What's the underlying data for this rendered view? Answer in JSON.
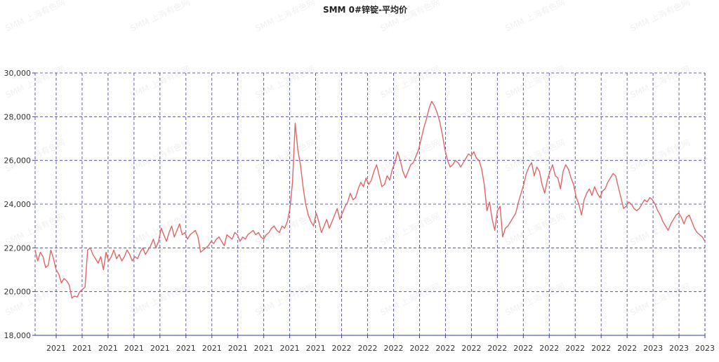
{
  "chart_data": {
    "type": "line",
    "title": "SMM 0#锌锭-平均价",
    "watermark": "SMM 上海有色网",
    "xlabel": "",
    "ylabel": "",
    "ylim": [
      18000,
      30000
    ],
    "y_ticks": [
      "30,000",
      "28,000",
      "26,000",
      "24,000",
      "22,000",
      "20,000",
      "18,000"
    ],
    "x_ticks": [
      "2021",
      "2021",
      "2021",
      "2021",
      "2021",
      "2021",
      "2021",
      "2021",
      "2021",
      "2021",
      "2021",
      "2022",
      "2022",
      "2022",
      "2022",
      "2022",
      "2022",
      "2022",
      "2022",
      "2022",
      "2022",
      "2022",
      "2022",
      "2023",
      "2023",
      "2023"
    ],
    "grid": true,
    "line_color": "#e06666",
    "grid_color": "#3a3a9a",
    "series": [
      {
        "values": [
          21900,
          21400,
          21800,
          21600,
          21100,
          21200,
          21900,
          21500,
          21000,
          20800,
          20400,
          20600,
          20500,
          20300,
          19700,
          19800,
          19750,
          20000,
          20100,
          20200,
          21900,
          22000,
          21700,
          21500,
          21300,
          21600,
          21000,
          21800,
          21400,
          21600,
          21900,
          21500,
          21700,
          21400,
          21600,
          21900,
          21700,
          21400,
          21600,
          21500,
          21800,
          22000,
          21700,
          21900,
          22100,
          22400,
          22000,
          22300,
          22900,
          22600,
          22300,
          22700,
          23000,
          22500,
          22800,
          23100,
          22600,
          22700,
          22400,
          22600,
          22700,
          22800,
          22500,
          21800,
          21900,
          22000,
          22100,
          22300,
          22200,
          22400,
          22500,
          22300,
          22100,
          22600,
          22500,
          22400,
          22700,
          22600,
          22300,
          22500,
          22400,
          22600,
          22700,
          22800,
          22600,
          22700,
          22500,
          22400,
          22600,
          22700,
          22900,
          23000,
          22800,
          22700,
          23000,
          22900,
          23200,
          23800,
          25000,
          27700,
          26500,
          25800,
          24800,
          24000,
          23500,
          23200,
          23000,
          23600,
          23200,
          22700,
          23000,
          23300,
          22900,
          23200,
          23500,
          23800,
          23300,
          23600,
          23900,
          24100,
          24500,
          24200,
          24300,
          24700,
          25000,
          24800,
          25200,
          24900,
          25100,
          25500,
          25800,
          25300,
          24800,
          24900,
          25300,
          25100,
          25600,
          25900,
          26400,
          26000,
          25500,
          25200,
          25500,
          25800,
          25900,
          26200,
          26500,
          27000,
          27500,
          27900,
          28400,
          28700,
          28500,
          28200,
          27800,
          27200,
          26500,
          26000,
          25700,
          25800,
          26000,
          25900,
          25700,
          25900,
          26100,
          26300,
          26200,
          26400,
          26100,
          26000,
          25600,
          24900,
          23700,
          24100,
          23300,
          22800,
          23700,
          23900,
          22500,
          22900,
          23000,
          23200,
          23400,
          23600,
          24100,
          24500,
          24900,
          25400,
          25700,
          25900,
          25300,
          25700,
          25500,
          24900,
          24500,
          25100,
          25500,
          25800,
          25300,
          25200,
          24700,
          25500,
          25800,
          25600,
          25200,
          24900,
          24300,
          24000,
          23500,
          24200,
          24500,
          24700,
          24400,
          24800,
          24500,
          24300,
          24600,
          24700,
          25000,
          25200,
          25400,
          25300,
          24800,
          24300,
          23800,
          23900,
          24100,
          24000,
          23800,
          23700,
          23800,
          24000,
          24200,
          24100,
          24300,
          24200,
          24000,
          23700,
          23500,
          23200,
          23000,
          22800,
          23100,
          23300,
          23500,
          23600,
          23400,
          23100,
          23400,
          23500,
          23200,
          22900,
          22700,
          22600,
          22500,
          22300
        ]
      }
    ]
  }
}
